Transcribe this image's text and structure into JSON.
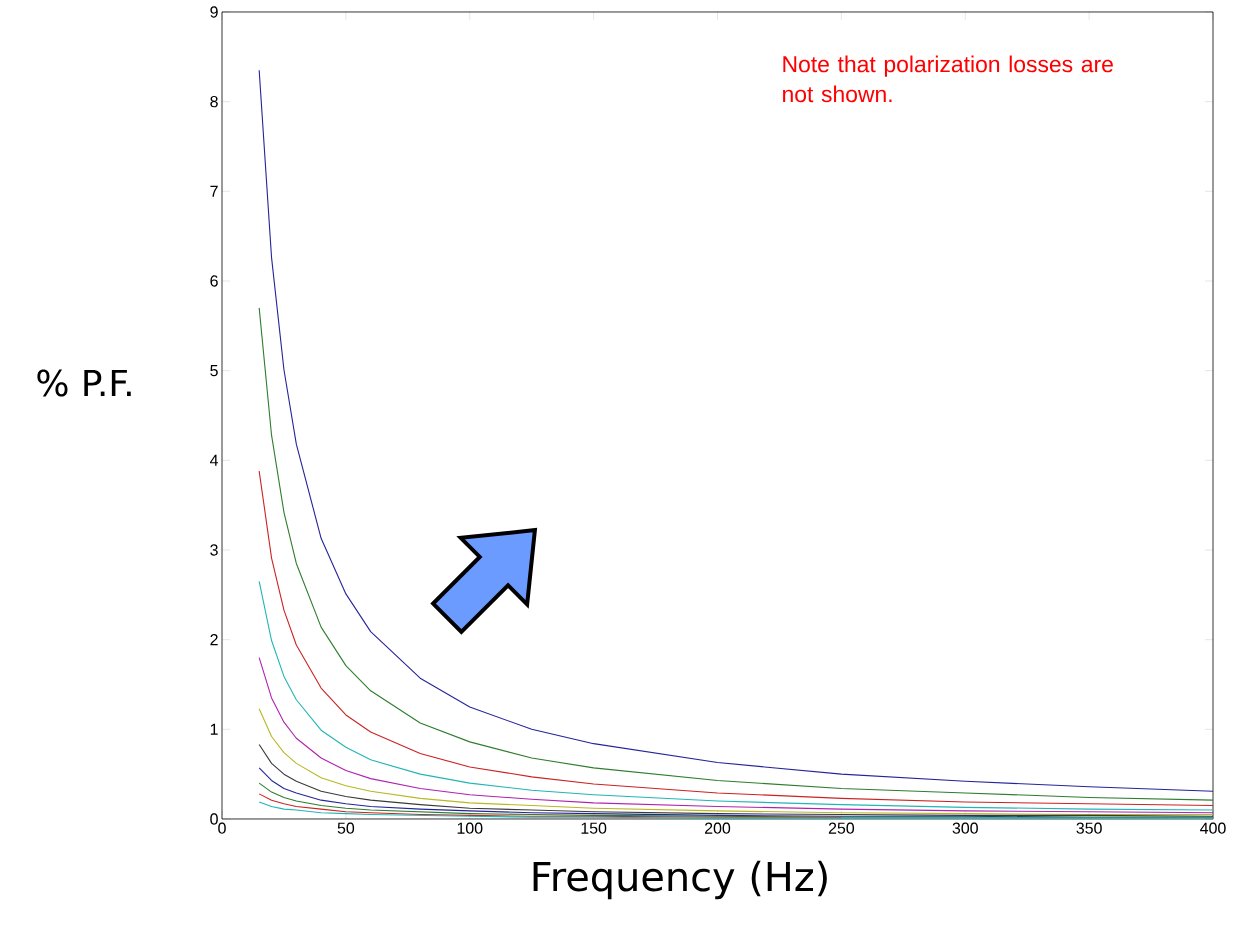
{
  "chart_data": {
    "type": "line",
    "xlabel": "Frequency (Hz)",
    "ylabel": "% P.F.",
    "annotations": [
      "Note that polarization losses are not shown."
    ],
    "xlim": [
      0,
      400
    ],
    "ylim": [
      0,
      9
    ],
    "xticks": [
      0,
      50,
      100,
      150,
      200,
      250,
      300,
      350,
      400
    ],
    "yticks": [
      0,
      1,
      2,
      3,
      4,
      5,
      6,
      7,
      8,
      9
    ],
    "x": [
      15,
      20,
      25,
      30,
      40,
      50,
      60,
      80,
      100,
      125,
      150,
      200,
      250,
      300,
      350,
      400
    ],
    "series": [
      {
        "color": "#24249a",
        "values": [
          8.35,
          6.26,
          5.01,
          4.18,
          3.13,
          2.51,
          2.09,
          1.57,
          1.25,
          1.0,
          0.84,
          0.63,
          0.5,
          0.42,
          0.36,
          0.31
        ]
      },
      {
        "color": "#2e7d2e",
        "values": [
          5.7,
          4.28,
          3.42,
          2.85,
          2.14,
          1.71,
          1.43,
          1.07,
          0.86,
          0.68,
          0.57,
          0.43,
          0.34,
          0.29,
          0.24,
          0.21
        ]
      },
      {
        "color": "#cc2222",
        "values": [
          3.88,
          2.91,
          2.33,
          1.94,
          1.46,
          1.16,
          0.97,
          0.73,
          0.58,
          0.47,
          0.39,
          0.29,
          0.23,
          0.19,
          0.17,
          0.15
        ]
      },
      {
        "color": "#22b5b5",
        "values": [
          2.65,
          1.99,
          1.59,
          1.33,
          0.99,
          0.8,
          0.66,
          0.5,
          0.4,
          0.32,
          0.27,
          0.2,
          0.16,
          0.13,
          0.11,
          0.1
        ]
      },
      {
        "color": "#b022b0",
        "values": [
          1.8,
          1.35,
          1.08,
          0.9,
          0.68,
          0.54,
          0.45,
          0.34,
          0.27,
          0.22,
          0.18,
          0.14,
          0.11,
          0.09,
          0.08,
          0.07
        ]
      },
      {
        "color": "#b8b822",
        "values": [
          1.23,
          0.92,
          0.74,
          0.62,
          0.46,
          0.37,
          0.31,
          0.23,
          0.18,
          0.15,
          0.12,
          0.09,
          0.07,
          0.06,
          0.05,
          0.05
        ]
      },
      {
        "color": "#3a3a3a",
        "values": [
          0.83,
          0.62,
          0.5,
          0.42,
          0.31,
          0.25,
          0.21,
          0.16,
          0.12,
          0.1,
          0.08,
          0.06,
          0.05,
          0.04,
          0.04,
          0.03
        ]
      },
      {
        "color": "#24249a",
        "values": [
          0.57,
          0.43,
          0.34,
          0.29,
          0.21,
          0.17,
          0.14,
          0.11,
          0.09,
          0.07,
          0.06,
          0.04,
          0.03,
          0.03,
          0.02,
          0.02
        ]
      },
      {
        "color": "#2e7d2e",
        "values": [
          0.4,
          0.3,
          0.24,
          0.2,
          0.15,
          0.12,
          0.1,
          0.08,
          0.06,
          0.05,
          0.04,
          0.03,
          0.02,
          0.02,
          0.02,
          0.02
        ]
      },
      {
        "color": "#cc2222",
        "values": [
          0.28,
          0.21,
          0.17,
          0.14,
          0.11,
          0.08,
          0.07,
          0.05,
          0.04,
          0.03,
          0.03,
          0.02,
          0.02,
          null,
          null,
          null
        ]
      },
      {
        "color": "#22b5b5",
        "values": [
          0.19,
          0.14,
          0.11,
          0.1,
          0.07,
          0.06,
          0.05,
          0.04,
          0.03,
          0.02,
          0.02,
          0.01,
          0.01,
          0.01,
          0.01,
          0.01
        ]
      }
    ]
  }
}
